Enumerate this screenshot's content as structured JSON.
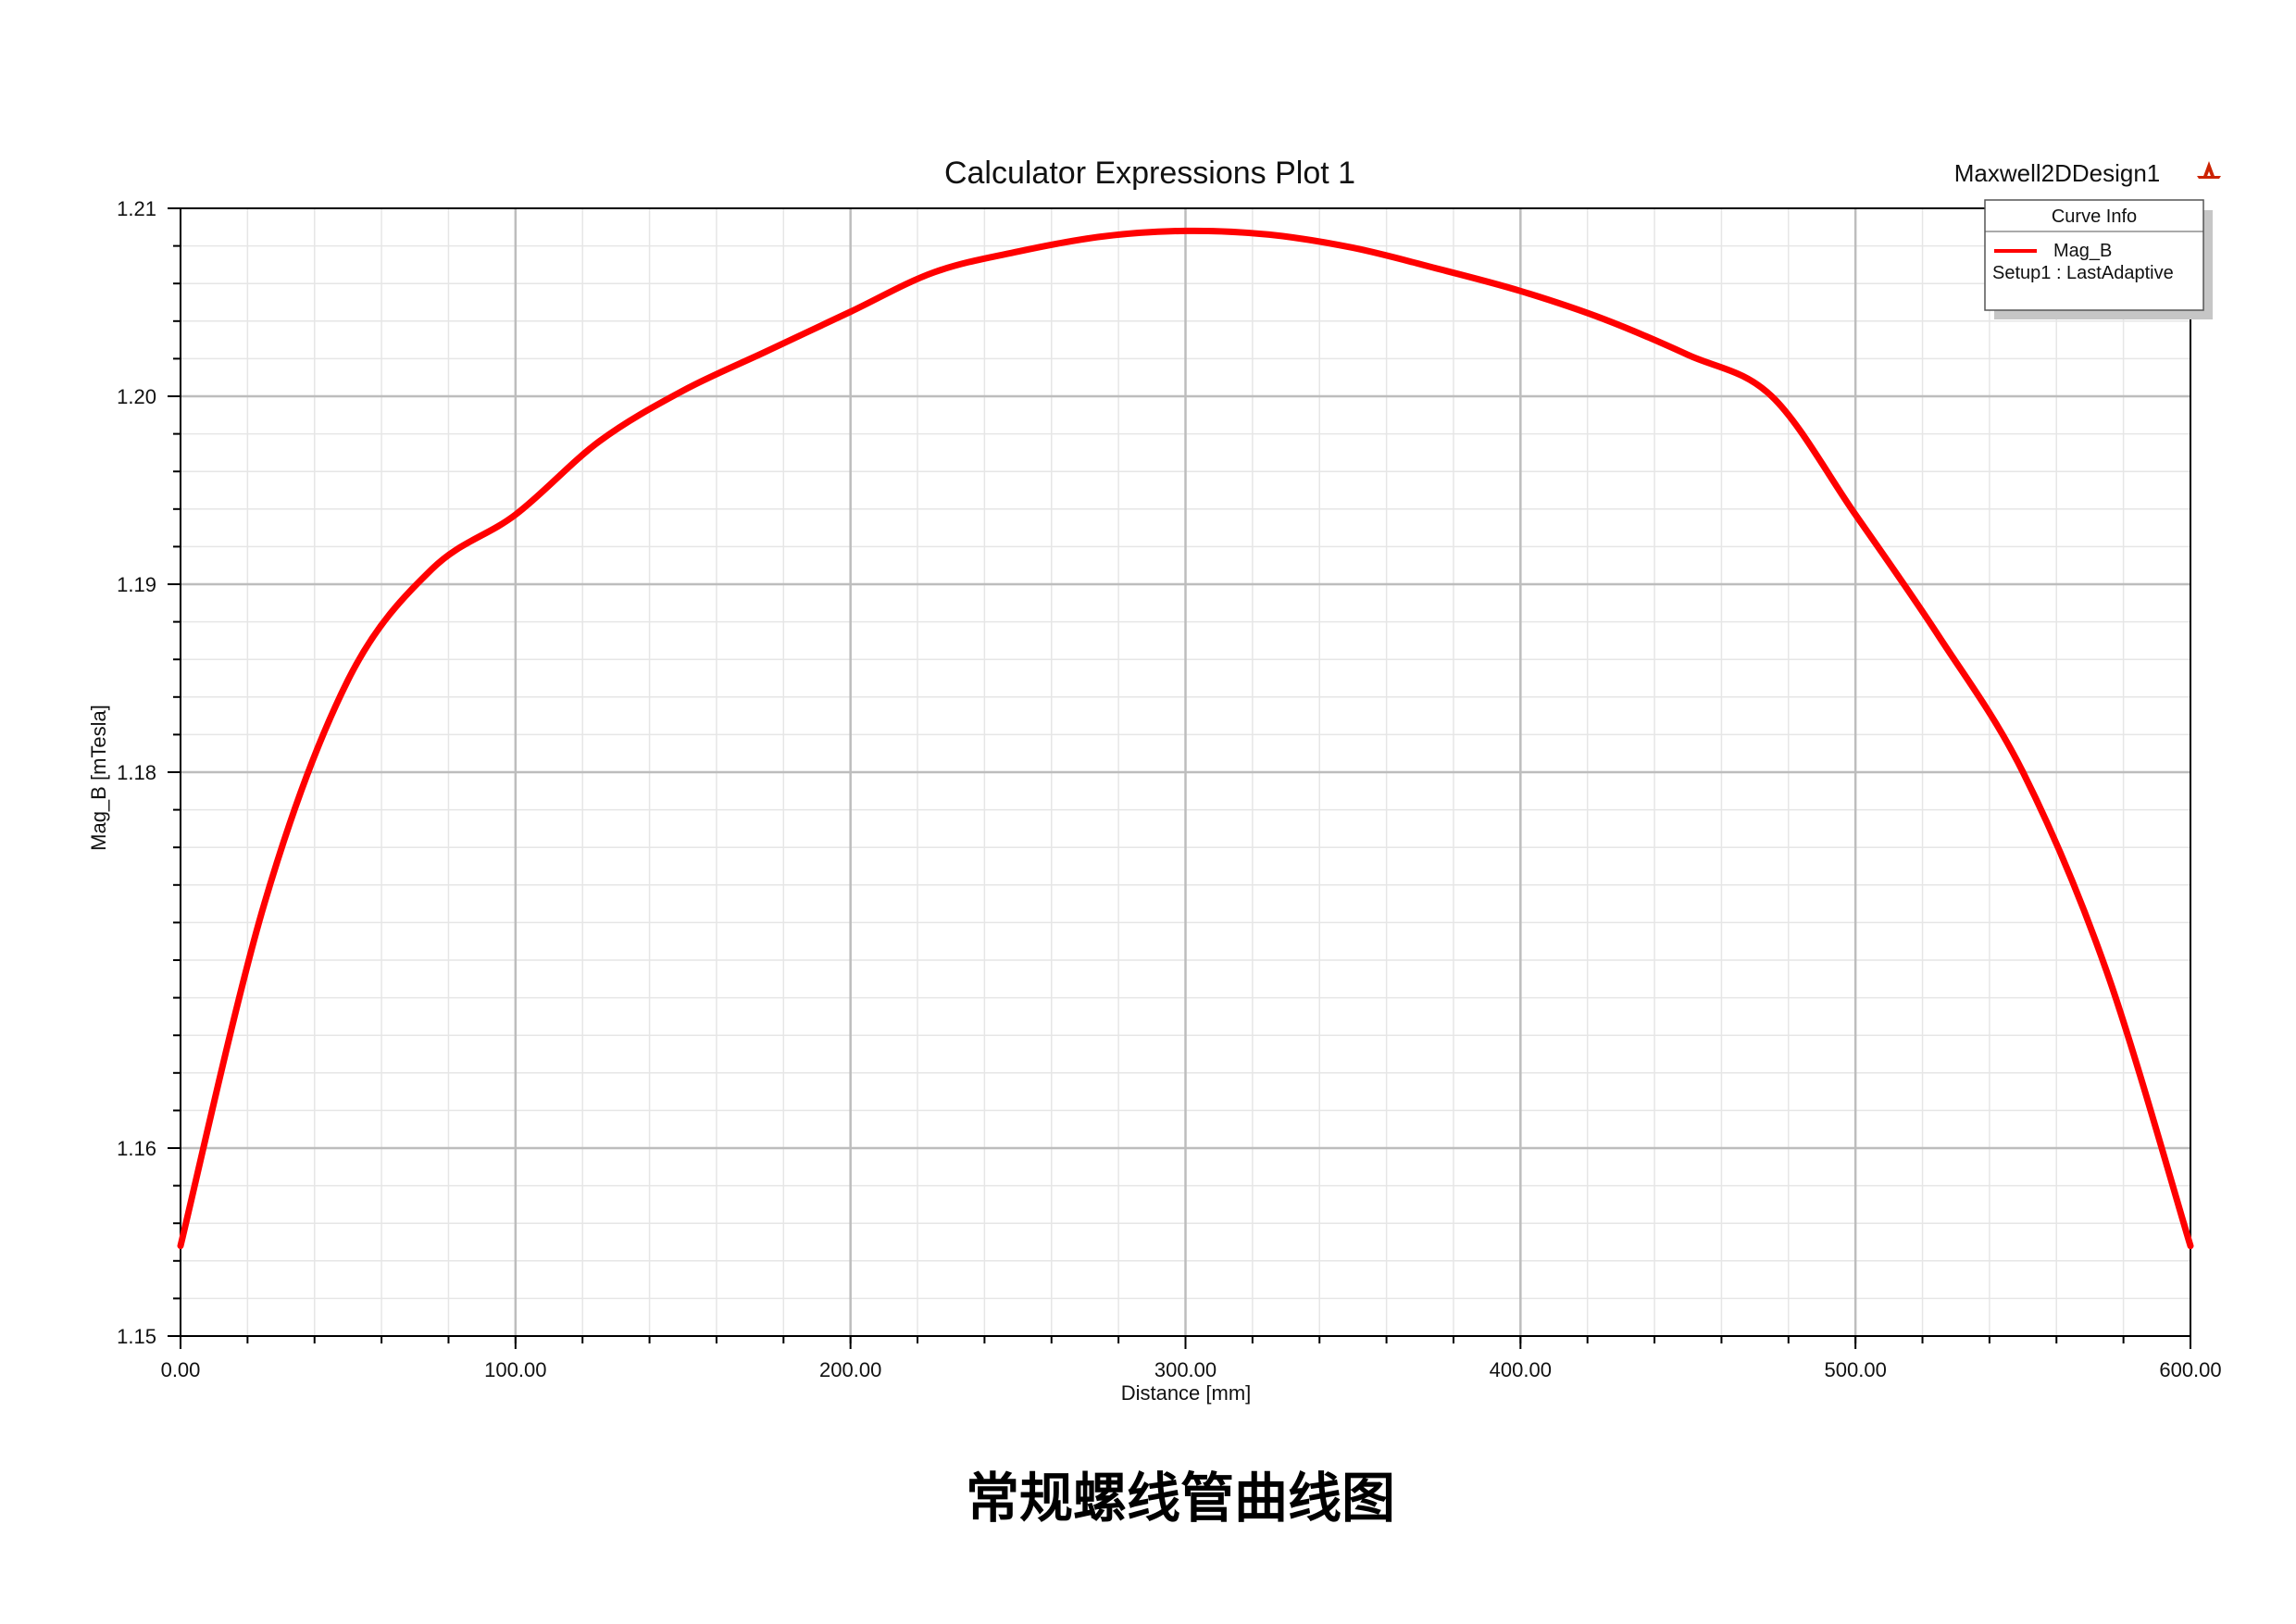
{
  "design_name": "Maxwell2DDesign1",
  "caption": "常规螺线管曲线图",
  "legend": {
    "title": "Curve Info",
    "entries": [
      {
        "line1": "Mag_B",
        "line2": "Setup1 : LastAdaptive"
      }
    ]
  },
  "colors": {
    "curve": "#ff0000",
    "major_grid": "#bdbdbd",
    "minor_grid": "#e6e6e6",
    "axis": "#000000",
    "logo": "#cc2200"
  },
  "icons": {
    "logo": "ansys-logo-icon"
  },
  "chart_data": {
    "type": "line",
    "title": "Calculator Expressions Plot 1",
    "xlabel": "Distance [mm]",
    "ylabel": "Mag_B [mTesla]",
    "xlim": [
      0,
      600
    ],
    "ylim": [
      1.15,
      1.21
    ],
    "xticks": [
      "0.00",
      "100.00",
      "200.00",
      "300.00",
      "400.00",
      "500.00",
      "600.00"
    ],
    "yticks": [
      "1.15",
      "1.16",
      "1.18",
      "1.19",
      "1.20",
      "1.21"
    ],
    "grid": true,
    "legend_position": "top-right",
    "series": [
      {
        "name": "Mag_B",
        "x": [
          0,
          25,
          50,
          75,
          100,
          125,
          150,
          175,
          200,
          225,
          250,
          275,
          300,
          325,
          350,
          375,
          400,
          425,
          450,
          475,
          500,
          525,
          550,
          575,
          600
        ],
        "values": [
          1.1548,
          1.173,
          1.1849,
          1.1908,
          1.1937,
          1.1976,
          1.2003,
          1.2024,
          1.2045,
          1.2066,
          1.2077,
          1.2085,
          1.2088,
          1.2086,
          1.2079,
          1.2068,
          1.2056,
          1.2041,
          1.2022,
          1.2,
          1.1937,
          1.1872,
          1.18,
          1.1694,
          1.1548
        ]
      }
    ]
  }
}
